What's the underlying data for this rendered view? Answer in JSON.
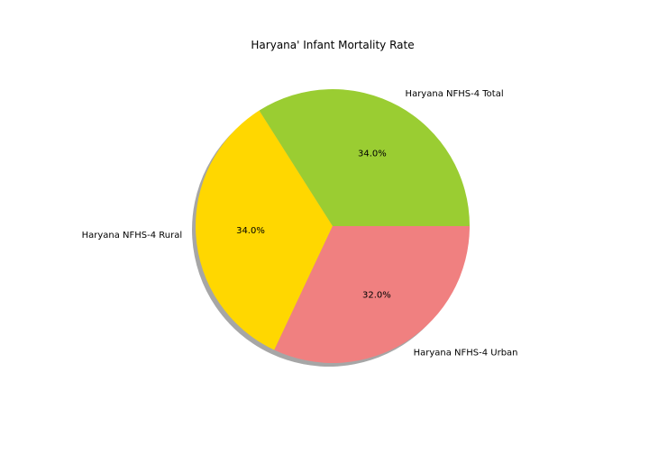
{
  "chart_data": {
    "type": "pie",
    "title": "Haryana' Infant Mortality Rate",
    "slices": [
      {
        "label": "Haryana NFHS-4 Total",
        "value": 34.0,
        "pct_label": "34.0%",
        "color": "#9ACD32"
      },
      {
        "label": "Haryana NFHS-4 Rural",
        "value": 34.0,
        "pct_label": "34.0%",
        "color": "#FFD700"
      },
      {
        "label": "Haryana NFHS-4 Urban",
        "value": 32.0,
        "pct_label": "32.0%",
        "color": "#F08080"
      }
    ],
    "start_angle_deg": 0,
    "direction": "counterclockwise",
    "shadow": true,
    "legend": "none"
  }
}
